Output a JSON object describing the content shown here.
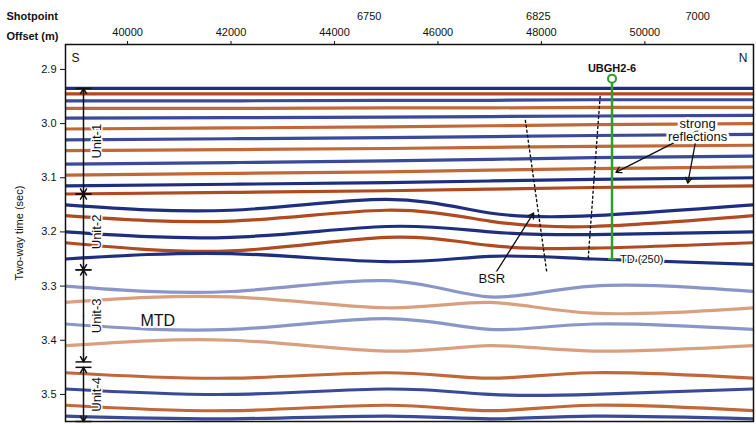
{
  "chart_data": {
    "type": "seismic",
    "x2label": "Shotpoint",
    "xlabel": "Offset (m)",
    "ylabel": "Two-way time (sec)",
    "xlim": [
      38800,
      52100
    ],
    "xticks": [
      40000,
      42000,
      44000,
      46000,
      48000,
      50000
    ],
    "x2ticks": [
      {
        "value": 44670,
        "label": "6750"
      },
      {
        "value": 47940,
        "label": "6825"
      },
      {
        "value": 51020,
        "label": "7000"
      }
    ],
    "ylim": [
      2.854,
      3.55
    ],
    "yticks": [
      2.9,
      {
        "value": 3.0,
        "label": "3.0"
      },
      3.1,
      3.2,
      3.3,
      3.4,
      3.5
    ],
    "direction_labels": {
      "left": "S",
      "right": "N"
    },
    "well": {
      "label": "UBGH2-6",
      "x": 49365,
      "label_y": 2.898,
      "top": 2.917,
      "bottom": 3.25,
      "td_label": "TD (250)",
      "color": "#2e9e2e"
    },
    "units": [
      {
        "label": "Unit-1",
        "top": 2.935,
        "bottom": 3.13
      },
      {
        "label": "Unit-2",
        "top": 3.13,
        "bottom": 3.27
      },
      {
        "label": "Unit-3",
        "top": 3.27,
        "bottom": 3.44
      },
      {
        "label": "Unit-4",
        "top": 3.45,
        "bottom": 3.55
      }
    ],
    "annotations": [
      {
        "text": "strong reflections",
        "x": 51020,
        "y": 3.013,
        "targets": [
          {
            "x": 49440,
            "y": 3.09
          },
          {
            "x": 50830,
            "y": 3.11
          }
        ]
      },
      {
        "text": "BSR",
        "x": 47040,
        "y": 3.287,
        "targets": [
          {
            "x": 47850,
            "y": 3.165
          }
        ]
      },
      {
        "text": "MTD",
        "x": 40250,
        "y": 3.365,
        "targets": []
      }
    ],
    "faults": [
      {
        "x": [
          47690,
          48100
        ],
        "y": [
          2.994,
          3.272
        ]
      },
      {
        "x": [
          49135,
          48904
        ],
        "y": [
          2.95,
          3.25
        ]
      }
    ],
    "reflector_x": [
      38800,
      42000,
      45000,
      47000,
      49000,
      52100
    ],
    "reflectors": [
      {
        "color": "#1f2f80",
        "y": [
          2.935,
          2.935,
          2.935,
          2.935,
          2.935,
          2.935
        ]
      },
      {
        "color": "#b04a20",
        "y": [
          2.945,
          2.945,
          2.945,
          2.945,
          2.945,
          2.945
        ]
      },
      {
        "color": "#3a4a98",
        "y": [
          2.958,
          2.958,
          2.957,
          2.957,
          2.956,
          2.956
        ]
      },
      {
        "color": "#c0683a",
        "y": [
          2.972,
          2.972,
          2.971,
          2.971,
          2.97,
          2.97
        ]
      },
      {
        "color": "#3a4a98",
        "y": [
          2.99,
          2.989,
          2.988,
          2.987,
          2.986,
          2.985
        ]
      },
      {
        "color": "#c0683a",
        "y": [
          3.01,
          3.008,
          3.006,
          3.004,
          3.002,
          3.0
        ]
      },
      {
        "color": "#3a4a98",
        "y": [
          3.03,
          3.028,
          3.026,
          3.024,
          3.022,
          3.02
        ]
      },
      {
        "color": "#c0683a",
        "y": [
          3.05,
          3.048,
          3.046,
          3.044,
          3.042,
          3.04
        ]
      },
      {
        "color": "#3a4a98",
        "y": [
          3.075,
          3.072,
          3.069,
          3.066,
          3.063,
          3.06
        ]
      },
      {
        "color": "#c0683a",
        "y": [
          3.095,
          3.092,
          3.089,
          3.086,
          3.083,
          3.08
        ]
      },
      {
        "color": "#1f2f80",
        "y": [
          3.115,
          3.112,
          3.109,
          3.106,
          3.103,
          3.1
        ]
      },
      {
        "color": "#b04a20",
        "y": [
          3.13,
          3.127,
          3.124,
          3.121,
          3.118,
          3.115
        ]
      },
      {
        "color": "#1f2f80",
        "y": [
          3.15,
          3.16,
          3.14,
          3.165,
          3.17,
          3.15
        ]
      },
      {
        "color": "#b04a20",
        "y": [
          3.17,
          3.18,
          3.16,
          3.18,
          3.19,
          3.17
        ]
      },
      {
        "color": "#1f2f80",
        "y": [
          3.2,
          3.21,
          3.19,
          3.2,
          3.205,
          3.2
        ]
      },
      {
        "color": "#b04a20",
        "y": [
          3.22,
          3.235,
          3.21,
          3.225,
          3.23,
          3.22
        ]
      },
      {
        "color": "#1f2f80",
        "y": [
          3.25,
          3.24,
          3.255,
          3.245,
          3.25,
          3.26
        ]
      },
      {
        "color": "#8a96c8",
        "y": [
          3.3,
          3.31,
          3.29,
          3.32,
          3.3,
          3.31
        ]
      },
      {
        "color": "#d9a080",
        "y": [
          3.33,
          3.32,
          3.34,
          3.33,
          3.35,
          3.34
        ]
      },
      {
        "color": "#8a96c8",
        "y": [
          3.37,
          3.38,
          3.36,
          3.38,
          3.37,
          3.38
        ]
      },
      {
        "color": "#d9a080",
        "y": [
          3.41,
          3.4,
          3.42,
          3.41,
          3.42,
          3.41
        ]
      },
      {
        "color": "#c0683a",
        "y": [
          3.46,
          3.47,
          3.46,
          3.47,
          3.46,
          3.47
        ]
      },
      {
        "color": "#3a4a98",
        "y": [
          3.49,
          3.5,
          3.49,
          3.5,
          3.5,
          3.49
        ]
      },
      {
        "color": "#c0683a",
        "y": [
          3.52,
          3.53,
          3.52,
          3.53,
          3.52,
          3.53
        ]
      },
      {
        "color": "#3a4a98",
        "y": [
          3.54,
          3.545,
          3.54,
          3.545,
          3.54,
          3.545
        ]
      }
    ]
  }
}
